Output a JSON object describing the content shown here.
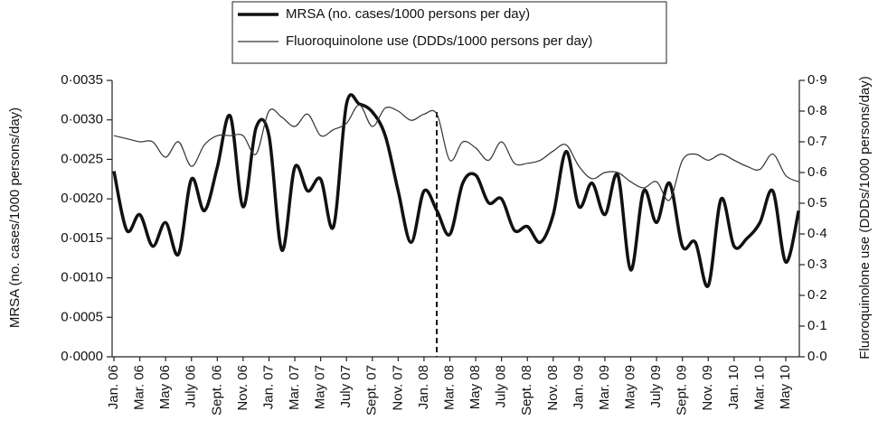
{
  "chart_data": {
    "type": "line",
    "y_label": "MRSA (no. cases/1000 persons/day)",
    "y2_label": "Fluoroquinolone use (DDDs/1000 persons/day)",
    "categories": [
      "Jan. 06",
      null,
      "Mar. 06",
      null,
      "May 06",
      null,
      "July 06",
      null,
      "Sept. 06",
      null,
      "Nov. 06",
      null,
      "Jan. 07",
      null,
      "Mar. 07",
      null,
      "May 07",
      null,
      "July 07",
      null,
      "Sept. 07",
      null,
      "Nov. 07",
      null,
      "Jan. 08",
      null,
      "Mar. 08",
      null,
      "May 08",
      null,
      "July 08",
      null,
      "Sept. 08",
      null,
      "Nov. 08",
      null,
      "Jan. 09",
      null,
      "Mar. 09",
      null,
      "May 09",
      null,
      "July 09",
      null,
      "Sept. 09",
      null,
      "Nov. 09",
      null,
      "Jan. 10",
      null,
      "Mar. 10",
      null,
      "May 10",
      null
    ],
    "series": [
      {
        "name": "MRSA (no. cases/1000 persons per day)",
        "color": "#111111",
        "width": 3.5,
        "values": [
          0.00235,
          0.0016,
          0.0018,
          0.0014,
          0.0017,
          0.0013,
          0.00225,
          0.00185,
          0.0024,
          0.00305,
          0.0019,
          0.0029,
          0.0028,
          0.00135,
          0.0024,
          0.0021,
          0.00225,
          0.00165,
          0.0032,
          0.0032,
          0.0031,
          0.0028,
          0.0021,
          0.00145,
          0.0021,
          0.00185,
          0.00155,
          0.0022,
          0.0023,
          0.00195,
          0.002,
          0.0016,
          0.00165,
          0.00145,
          0.0018,
          0.0026,
          0.0019,
          0.0022,
          0.0018,
          0.0023,
          0.0011,
          0.0021,
          0.0017,
          0.0022,
          0.0014,
          0.00145,
          0.0009,
          0.002,
          0.0014,
          0.0015,
          0.0017,
          0.0021,
          0.0012,
          0.00185
        ]
      },
      {
        "name": "Fluoroquinolone use (DDDs/1000 persons per day)",
        "color": "#333333",
        "width": 1.2,
        "axis": "y2",
        "values": [
          0.72,
          0.71,
          0.7,
          0.7,
          0.65,
          0.7,
          0.62,
          0.69,
          0.72,
          0.72,
          0.72,
          0.66,
          0.8,
          0.78,
          0.75,
          0.79,
          0.72,
          0.74,
          0.76,
          0.82,
          0.75,
          0.81,
          0.8,
          0.77,
          0.79,
          0.79,
          0.64,
          0.7,
          0.68,
          0.64,
          0.7,
          0.63,
          0.63,
          0.64,
          0.67,
          0.69,
          0.62,
          0.58,
          0.6,
          0.6,
          0.57,
          0.55,
          0.57,
          0.51,
          0.64,
          0.66,
          0.64,
          0.66,
          0.64,
          0.62,
          0.61,
          0.66,
          0.59,
          0.57
        ]
      }
    ],
    "ylim": [
      0,
      0.0035
    ],
    "yticks": [
      {
        "value": 0,
        "label": "0·0000"
      },
      {
        "value": 0.0005,
        "label": "0·0005"
      },
      {
        "value": 0.001,
        "label": "0·0010"
      },
      {
        "value": 0.0015,
        "label": "0·0015"
      },
      {
        "value": 0.002,
        "label": "0·0020"
      },
      {
        "value": 0.0025,
        "label": "0·0025"
      },
      {
        "value": 0.003,
        "label": "0·0030"
      },
      {
        "value": 0.0035,
        "label": "0·0035"
      }
    ],
    "y2lim": [
      0,
      0.9
    ],
    "y2ticks": [
      {
        "value": 0,
        "label": "0·0"
      },
      {
        "value": 0.1,
        "label": "0·1"
      },
      {
        "value": 0.2,
        "label": "0·2"
      },
      {
        "value": 0.3,
        "label": "0·3"
      },
      {
        "value": 0.4,
        "label": "0·4"
      },
      {
        "value": 0.5,
        "label": "0·5"
      },
      {
        "value": 0.6,
        "label": "0·6"
      },
      {
        "value": 0.7,
        "label": "0·7"
      },
      {
        "value": 0.8,
        "label": "0·8"
      },
      {
        "value": 0.9,
        "label": "0·9"
      }
    ],
    "grid": false,
    "legend": "top"
  }
}
